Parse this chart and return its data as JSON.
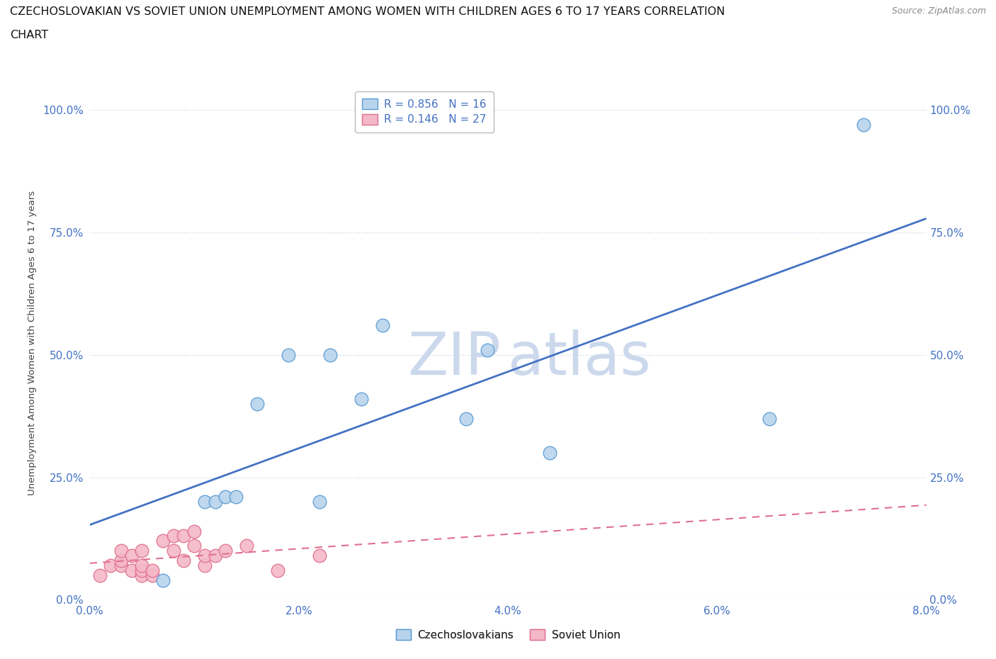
{
  "title_line1": "CZECHOSLOVAKIAN VS SOVIET UNION UNEMPLOYMENT AMONG WOMEN WITH CHILDREN AGES 6 TO 17 YEARS CORRELATION",
  "title_line2": "CHART",
  "source": "Source: ZipAtlas.com",
  "ylabel": "Unemployment Among Women with Children Ages 6 to 17 years",
  "xlabel_ticks": [
    "0.0%",
    "2.0%",
    "4.0%",
    "6.0%",
    "8.0%"
  ],
  "xlabel_vals": [
    0.0,
    0.02,
    0.04,
    0.06,
    0.08
  ],
  "ylabel_ticks": [
    "0.0%",
    "25.0%",
    "50.0%",
    "75.0%",
    "100.0%"
  ],
  "ylabel_vals": [
    0.0,
    0.25,
    0.5,
    0.75,
    1.0
  ],
  "xlim": [
    0.0,
    0.08
  ],
  "ylim": [
    0.0,
    1.05
  ],
  "czech_x": [
    0.007,
    0.011,
    0.012,
    0.013,
    0.014,
    0.016,
    0.019,
    0.022,
    0.023,
    0.026,
    0.028,
    0.036,
    0.038,
    0.044,
    0.065,
    0.074
  ],
  "czech_y": [
    0.04,
    0.2,
    0.2,
    0.21,
    0.21,
    0.4,
    0.5,
    0.2,
    0.5,
    0.41,
    0.56,
    0.37,
    0.51,
    0.3,
    0.37,
    0.97
  ],
  "soviet_x": [
    0.001,
    0.002,
    0.003,
    0.003,
    0.003,
    0.004,
    0.004,
    0.005,
    0.005,
    0.005,
    0.005,
    0.006,
    0.006,
    0.007,
    0.008,
    0.008,
    0.009,
    0.009,
    0.01,
    0.01,
    0.011,
    0.011,
    0.012,
    0.013,
    0.015,
    0.018,
    0.022
  ],
  "soviet_y": [
    0.05,
    0.07,
    0.07,
    0.08,
    0.1,
    0.06,
    0.09,
    0.05,
    0.06,
    0.07,
    0.1,
    0.05,
    0.06,
    0.12,
    0.1,
    0.13,
    0.08,
    0.13,
    0.11,
    0.14,
    0.07,
    0.09,
    0.09,
    0.1,
    0.11,
    0.06,
    0.09
  ],
  "czech_color": "#b8d4ec",
  "czech_edge": "#5b9bd5",
  "soviet_color": "#f4b8c8",
  "soviet_edge": "#e07090",
  "czech_R": 0.856,
  "czech_N": 16,
  "soviet_R": 0.146,
  "soviet_N": 27,
  "trendline_czech_color": "#4472c4",
  "trendline_soviet_color": "#e07090",
  "background_color": "#ffffff",
  "grid_color": "#c8d8ec",
  "watermark_line1": "ZIP",
  "watermark_line2": "atlas",
  "watermark_color": "#ccd8ec"
}
